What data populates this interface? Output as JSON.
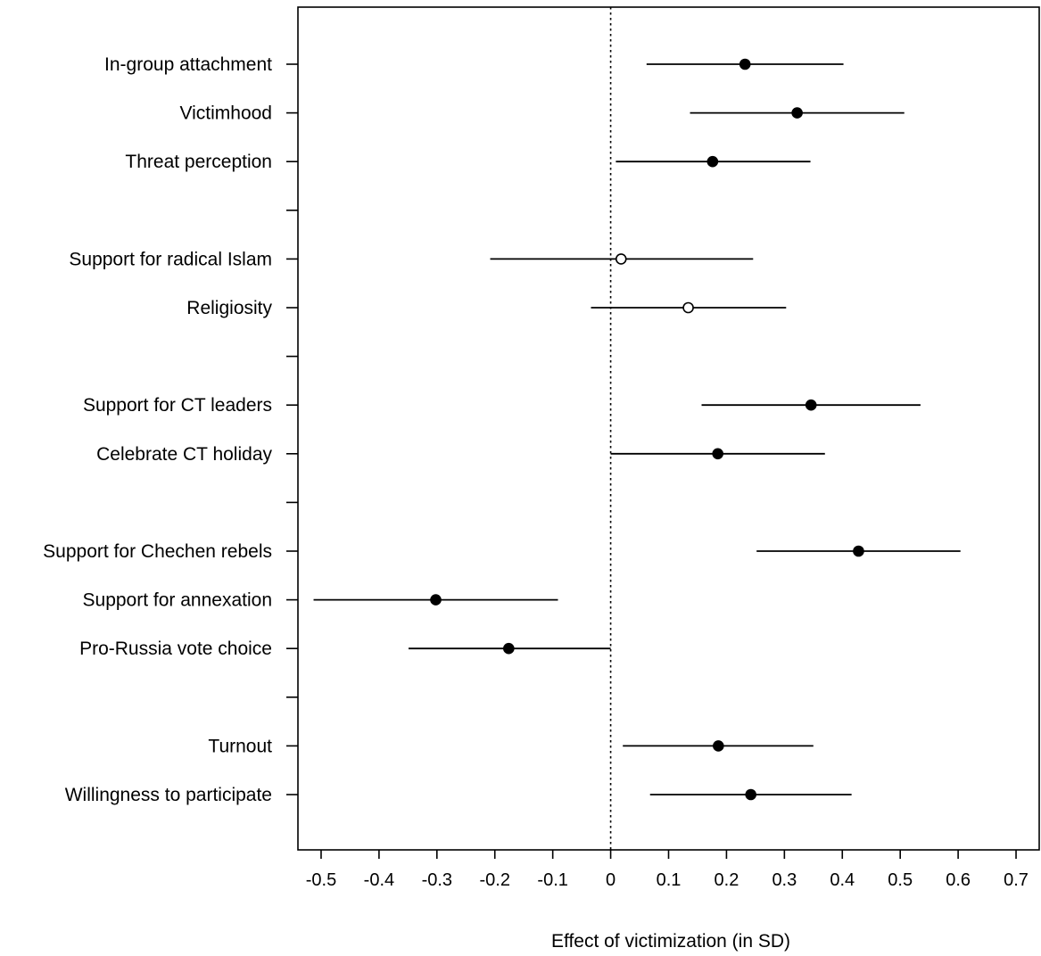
{
  "chart_data": {
    "type": "scatter",
    "subtype": "coefficient-plot",
    "title": "",
    "xlabel": "Effect of victimization (in SD)",
    "ylabel": "",
    "xlim": [
      -0.54,
      0.74
    ],
    "x_ticks": [
      -0.5,
      -0.4,
      -0.3,
      -0.2,
      -0.1,
      0,
      0.1,
      0.2,
      0.3,
      0.4,
      0.5,
      0.6,
      0.7
    ],
    "x_tick_labels": [
      "-0.5",
      "-0.4",
      "-0.3",
      "-0.2",
      "-0.1",
      "0",
      "0.1",
      "0.2",
      "0.3",
      "0.4",
      "0.5",
      "0.6",
      "0.7"
    ],
    "reference_line": {
      "x": 0,
      "style": "dotted"
    },
    "grid": false,
    "legend": "none",
    "row_count": 16,
    "points": [
      {
        "label": "In-group attachment",
        "row": 1,
        "estimate": 0.232,
        "ci_low": 0.062,
        "ci_high": 0.402,
        "filled": true
      },
      {
        "label": "Victimhood",
        "row": 2,
        "estimate": 0.322,
        "ci_low": 0.137,
        "ci_high": 0.507,
        "filled": true
      },
      {
        "label": "Threat perception",
        "row": 3,
        "estimate": 0.176,
        "ci_low": 0.009,
        "ci_high": 0.345,
        "filled": true
      },
      {
        "label": "Support for radical Islam",
        "row": 5,
        "estimate": 0.018,
        "ci_low": -0.208,
        "ci_high": 0.246,
        "filled": false
      },
      {
        "label": "Religiosity",
        "row": 6,
        "estimate": 0.134,
        "ci_low": -0.034,
        "ci_high": 0.303,
        "filled": false
      },
      {
        "label": "Support for CT leaders",
        "row": 8,
        "estimate": 0.346,
        "ci_low": 0.157,
        "ci_high": 0.535,
        "filled": true
      },
      {
        "label": "Celebrate CT holiday",
        "row": 9,
        "estimate": 0.185,
        "ci_low": 0.0,
        "ci_high": 0.37,
        "filled": true
      },
      {
        "label": "Support for Chechen rebels",
        "row": 11,
        "estimate": 0.428,
        "ci_low": 0.252,
        "ci_high": 0.604,
        "filled": true
      },
      {
        "label": "Support for annexation",
        "row": 12,
        "estimate": -0.302,
        "ci_low": -0.513,
        "ci_high": -0.091,
        "filled": true
      },
      {
        "label": "Pro-Russia vote choice",
        "row": 13,
        "estimate": -0.176,
        "ci_low": -0.349,
        "ci_high": 0.0,
        "filled": true
      },
      {
        "label": "Turnout",
        "row": 15,
        "estimate": 0.186,
        "ci_low": 0.021,
        "ci_high": 0.35,
        "filled": true
      },
      {
        "label": "Willingness to participate",
        "row": 16,
        "estimate": 0.242,
        "ci_low": 0.068,
        "ci_high": 0.416,
        "filled": true
      }
    ],
    "separator_rows": [
      4,
      7,
      10,
      14
    ]
  },
  "colors": {
    "ink": "#000000",
    "open_marker_fill": "#ffffff"
  }
}
